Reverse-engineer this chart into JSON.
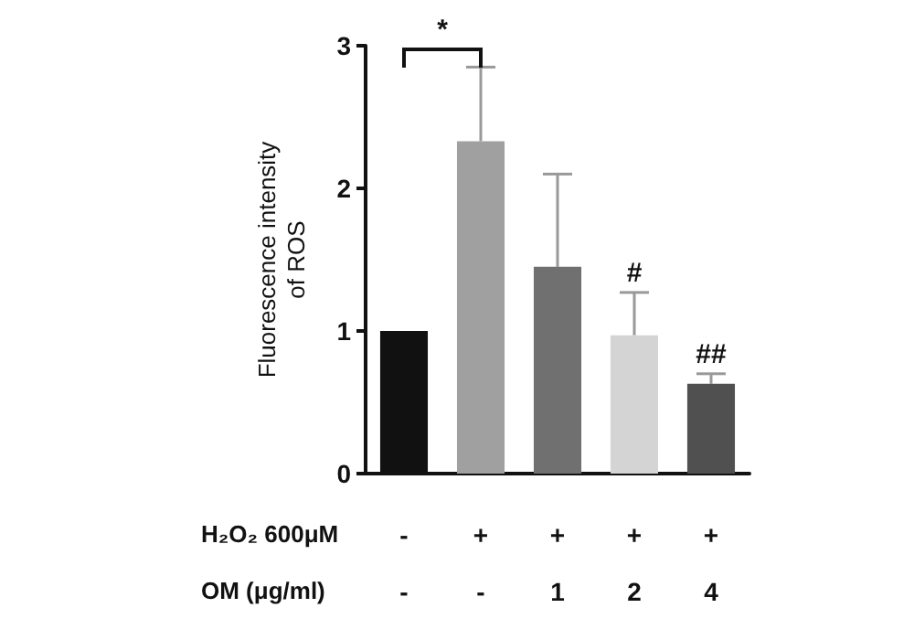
{
  "chart_data": {
    "type": "bar",
    "ylabel": "Fluorescence intensity\nof ROS",
    "categories": [
      "-\n-",
      "+\n-",
      "+\n1",
      "+\n2",
      "+\n4"
    ],
    "values": [
      1.0,
      2.33,
      1.45,
      0.97,
      0.63
    ],
    "colors": [
      "#111111",
      "#a0a0a0",
      "#707070",
      "#d4d4d4",
      "#505050"
    ],
    "errors": [
      null,
      [
        2.33,
        2.85
      ],
      [
        1.45,
        2.1
      ],
      [
        0.97,
        1.27
      ],
      [
        0.63,
        0.7
      ]
    ],
    "ylim": [
      0,
      3
    ],
    "yticks": [
      0,
      1,
      2,
      3
    ],
    "grid": false,
    "value_labels": [
      null,
      null,
      null,
      "#",
      "##"
    ],
    "annotations": [
      "*",
      "H₂O₂ 600μM",
      "OM (μg/ml)"
    ]
  }
}
